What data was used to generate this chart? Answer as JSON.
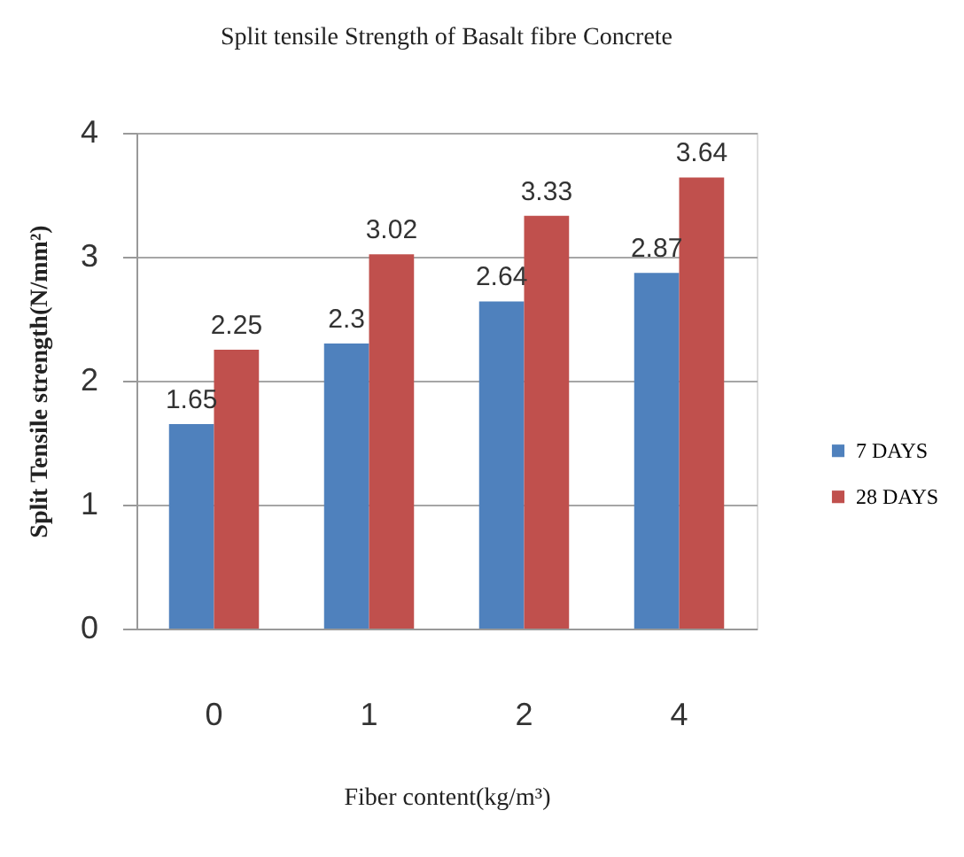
{
  "chart_data": {
    "type": "bar",
    "title": "Split tensile Strength of Basalt fibre Concrete",
    "xlabel": "Fiber content(kg/m³)",
    "ylabel": "Split Tensile strength(N/mm²)",
    "categories": [
      "0",
      "1",
      "2",
      "4"
    ],
    "series": [
      {
        "name": "7 DAYS",
        "color": "#4f81bd",
        "values": [
          1.65,
          2.3,
          2.64,
          2.87
        ]
      },
      {
        "name": "28 DAYS",
        "color": "#c0504d",
        "values": [
          2.25,
          3.02,
          3.33,
          3.64
        ]
      }
    ],
    "ylim": [
      0,
      4
    ],
    "yticks": [
      0,
      1,
      2,
      3,
      4
    ],
    "grid": "y",
    "legend": "right",
    "data_labels": true
  }
}
